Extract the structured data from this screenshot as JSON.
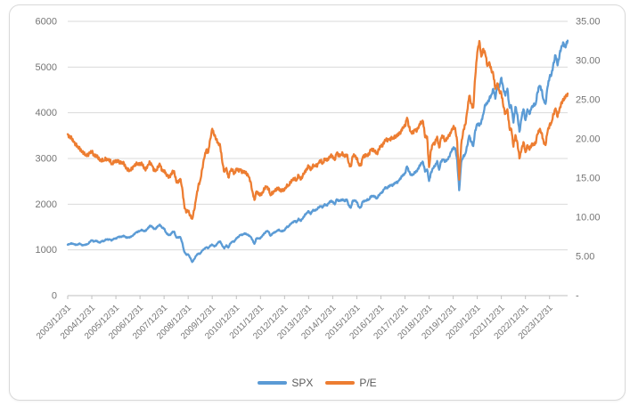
{
  "chart_data": {
    "type": "line",
    "title": "",
    "grid": "horizontal",
    "legend_position": "bottom",
    "x_start": "2003/12/31",
    "x_end": "2024/09",
    "x_frequency_plotted": "monthly",
    "x_tick_labels": [
      "2003/12/31",
      "2004/12/31",
      "2005/12/31",
      "2006/12/31",
      "2007/12/31",
      "2008/12/31",
      "2009/12/31",
      "2010/12/31",
      "2011/12/31",
      "2012/12/31",
      "2013/12/31",
      "2014/12/31",
      "2015/12/31",
      "2016/12/31",
      "2017/12/31",
      "2018/12/31",
      "2019/12/31",
      "2020/12/31",
      "2021/12/31",
      "2022/12/31",
      "2023/12/31"
    ],
    "left_axis": {
      "min": 0,
      "max": 6000,
      "step": 1000,
      "tick_labels": [
        "6000",
        "5000",
        "4000",
        "3000",
        "2000",
        "1000",
        "0"
      ]
    },
    "right_axis": {
      "min": 0,
      "max": 35,
      "step": 5,
      "tick_labels": [
        "35.00",
        "30.00",
        "25.00",
        "20.00",
        "15.00",
        "10.00",
        "5.00",
        "-"
      ]
    },
    "series": [
      {
        "name": "SPX",
        "axis": "left",
        "color": "#5B9BD5",
        "values": [
          1112,
          1131,
          1145,
          1126,
          1107,
          1121,
          1141,
          1102,
          1104,
          1115,
          1130,
          1174,
          1212,
          1181,
          1204,
          1181,
          1157,
          1192,
          1191,
          1234,
          1220,
          1229,
          1207,
          1249,
          1248,
          1280,
          1281,
          1295,
          1311,
          1270,
          1270,
          1277,
          1304,
          1336,
          1378,
          1401,
          1418,
          1438,
          1407,
          1421,
          1482,
          1531,
          1503,
          1455,
          1474,
          1527,
          1549,
          1481,
          1468,
          1379,
          1331,
          1323,
          1386,
          1400,
          1280,
          1267,
          1283,
          1166,
          969,
          896,
          903,
          826,
          735,
          798,
          873,
          919,
          919,
          987,
          1021,
          1057,
          1036,
          1096,
          1115,
          1074,
          1104,
          1169,
          1187,
          1089,
          1031,
          1102,
          1049,
          1141,
          1183,
          1181,
          1258,
          1286,
          1327,
          1326,
          1364,
          1345,
          1321,
          1292,
          1219,
          1131,
          1253,
          1247,
          1258,
          1312,
          1366,
          1408,
          1398,
          1310,
          1362,
          1379,
          1407,
          1441,
          1412,
          1416,
          1426,
          1498,
          1515,
          1569,
          1598,
          1631,
          1606,
          1686,
          1633,
          1682,
          1757,
          1806,
          1848,
          1783,
          1859,
          1872,
          1884,
          1924,
          1960,
          1931,
          2003,
          1972,
          2018,
          2068,
          2059,
          1995,
          2105,
          2068,
          2086,
          2107,
          2063,
          2104,
          1972,
          1920,
          2079,
          2080,
          2044,
          1940,
          1932,
          2060,
          2065,
          2097,
          2099,
          2174,
          2171,
          2168,
          2126,
          2199,
          2239,
          2279,
          2364,
          2363,
          2384,
          2412,
          2423,
          2470,
          2472,
          2519,
          2575,
          2648,
          2674,
          2824,
          2714,
          2641,
          2648,
          2705,
          2718,
          2816,
          2902,
          2914,
          2712,
          2760,
          2507,
          2704,
          2784,
          2834,
          2946,
          2752,
          2942,
          2980,
          2926,
          2977,
          3038,
          3141,
          3231,
          3226,
          2954,
          2305,
          2912,
          3044,
          3100,
          3271,
          3500,
          3363,
          3270,
          3622,
          3756,
          3714,
          3811,
          3973,
          4181,
          4204,
          4298,
          4395,
          4523,
          4308,
          4605,
          4567,
          4766,
          4516,
          4374,
          4530,
          4132,
          4132,
          3785,
          4130,
          3955,
          3586,
          3872,
          4080,
          3840,
          4077,
          3970,
          4109,
          4169,
          4180,
          4450,
          4589,
          4508,
          4288,
          4194,
          4568,
          4770,
          4846,
          5096,
          5254,
          5036,
          5278,
          5460,
          5522,
          5430,
          5580
        ]
      },
      {
        "name": "P/E",
        "axis": "right",
        "color": "#ED7D31",
        "values": [
          20.6,
          20.3,
          20.0,
          19.6,
          19.3,
          19.0,
          18.8,
          18.3,
          18.2,
          18.0,
          17.9,
          18.2,
          18.4,
          17.9,
          18.0,
          17.6,
          17.2,
          17.4,
          17.2,
          17.5,
          17.3,
          17.2,
          16.8,
          17.2,
          17.0,
          17.2,
          17.0,
          17.0,
          16.9,
          16.2,
          16.1,
          16.0,
          16.2,
          16.5,
          16.8,
          16.8,
          16.9,
          16.8,
          16.2,
          16.2,
          16.7,
          17.0,
          16.6,
          15.9,
          16.0,
          16.5,
          16.7,
          15.9,
          16.0,
          15.5,
          15.2,
          15.1,
          15.8,
          15.9,
          14.6,
          14.4,
          14.9,
          13.8,
          11.6,
          10.6,
          10.8,
          10.3,
          9.8,
          10.9,
          12.5,
          13.9,
          14.7,
          16.2,
          17.5,
          18.6,
          18.3,
          20.0,
          21.3,
          20.4,
          20.0,
          19.5,
          19.0,
          17.0,
          15.8,
          16.3,
          15.1,
          15.9,
          16.0,
          15.6,
          16.2,
          15.9,
          16.1,
          15.7,
          15.9,
          15.6,
          15.2,
          14.6,
          13.3,
          12.2,
          13.3,
          12.9,
          12.9,
          13.2,
          13.6,
          13.9,
          13.7,
          12.8,
          13.2,
          13.3,
          13.5,
          13.8,
          13.4,
          13.4,
          13.5,
          14.0,
          14.1,
          14.5,
          14.7,
          15.0,
          14.7,
          15.4,
          14.8,
          15.2,
          15.8,
          16.2,
          16.5,
          16.0,
          16.6,
          16.6,
          16.6,
          16.9,
          17.2,
          16.9,
          17.5,
          17.2,
          17.5,
          17.9,
          17.8,
          17.3,
          18.2,
          17.9,
          18.0,
          18.1,
          17.7,
          18.0,
          16.9,
          16.5,
          17.8,
          17.8,
          17.6,
          16.7,
          16.6,
          17.7,
          17.8,
          18.0,
          18.0,
          18.6,
          18.6,
          18.5,
          18.1,
          18.7,
          19.0,
          19.3,
          19.9,
          19.8,
          19.9,
          20.0,
          20.1,
          20.4,
          20.3,
          20.6,
          21.0,
          21.5,
          21.6,
          22.7,
          21.5,
          20.9,
          20.8,
          21.1,
          21.1,
          21.7,
          22.2,
          22.2,
          20.2,
          20.3,
          16.4,
          18.6,
          19.4,
          19.5,
          20.3,
          18.9,
          20.1,
          20.3,
          19.8,
          20.1,
          20.4,
          20.9,
          21.5,
          21.4,
          19.6,
          14.8,
          19.3,
          21.0,
          21.8,
          23.5,
          25.5,
          24.5,
          24.0,
          28.0,
          31.0,
          32.5,
          30.5,
          31.5,
          30.8,
          29.3,
          29.8,
          28.8,
          28.2,
          26.4,
          27.1,
          26.1,
          25.8,
          24.1,
          23.2,
          23.8,
          21.4,
          21.2,
          19.0,
          20.5,
          19.5,
          17.5,
          18.6,
          19.6,
          18.3,
          19.2,
          18.6,
          19.2,
          19.4,
          19.4,
          20.6,
          21.2,
          20.8,
          19.7,
          19.2,
          20.9,
          21.8,
          22.1,
          23.2,
          23.9,
          22.8,
          23.9,
          24.7,
          24.9,
          25.4,
          25.8
        ]
      }
    ],
    "style": {
      "gridline_color": "#d9d9d9",
      "axis_line_color": "#bfbfbf",
      "tick_label_color": "#757575",
      "legend_label_color": "#595959"
    }
  }
}
